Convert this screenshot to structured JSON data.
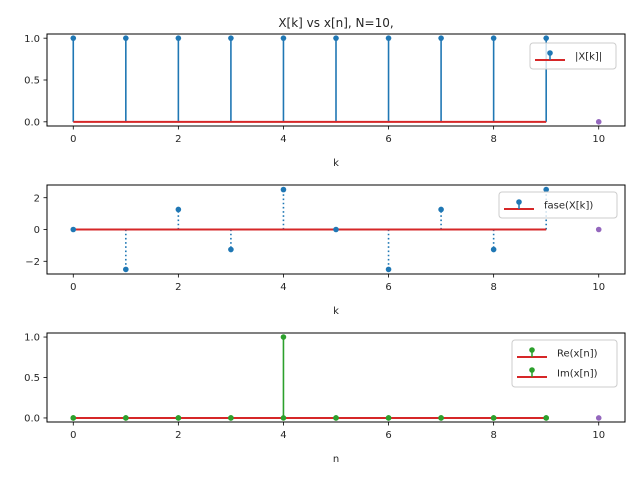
{
  "figure": {
    "title": "X[k] vs x[n], N=10,"
  },
  "colors": {
    "stem_blue": "#1f77b4",
    "stem_green": "#2ca02c",
    "baseline_red": "#d62728",
    "extra_point_purple": "#9467bd",
    "axis": "#000000",
    "text": "#262626"
  },
  "chart_data": [
    {
      "type": "stem",
      "title": "X[k] vs x[n], N=10,",
      "xlabel": "k",
      "ylabel": "",
      "legend": [
        "|X[k]|"
      ],
      "legend_position": "upper right",
      "xlim": [
        -0.5,
        10.5
      ],
      "ylim": [
        -0.05,
        1.05
      ],
      "xticks": [
        "0",
        "2",
        "4",
        "6",
        "8",
        "10"
      ],
      "yticks": [
        "0.0",
        "0.5",
        "1.0"
      ],
      "linestyle": "solid",
      "series": [
        {
          "name": "|X[k]|",
          "x": [
            0,
            1,
            2,
            3,
            4,
            5,
            6,
            7,
            8,
            9
          ],
          "values": [
            1,
            1,
            1,
            1,
            1,
            1,
            1,
            1,
            1,
            1
          ],
          "color": "#1f77b4"
        },
        {
          "name": "extra point",
          "x": [
            10
          ],
          "values": [
            0
          ],
          "color": "#9467bd"
        }
      ],
      "baseline": {
        "from": 0,
        "to": 9,
        "y": 0,
        "color": "#d62728"
      }
    },
    {
      "type": "stem",
      "title": "",
      "xlabel": "k",
      "ylabel": "",
      "legend": [
        "fase(X[k])"
      ],
      "legend_position": "upper right",
      "xlim": [
        -0.5,
        10.5
      ],
      "ylim": [
        -2.8,
        2.8
      ],
      "xticks": [
        "0",
        "2",
        "4",
        "6",
        "8",
        "10"
      ],
      "yticks": [
        "−2",
        "0",
        "2"
      ],
      "linestyle": "dotted",
      "series": [
        {
          "name": "fase(X[k])",
          "x": [
            0,
            1,
            2,
            3,
            4,
            5,
            6,
            7,
            8,
            9
          ],
          "values": [
            0,
            -2.51,
            1.26,
            -1.26,
            2.51,
            0,
            -2.51,
            1.26,
            -1.26,
            2.51
          ],
          "color": "#1f77b4"
        },
        {
          "name": "extra point",
          "x": [
            10
          ],
          "values": [
            0
          ],
          "color": "#9467bd"
        }
      ],
      "baseline": {
        "from": 0,
        "to": 9,
        "y": 0,
        "color": "#d62728"
      }
    },
    {
      "type": "stem",
      "title": "",
      "xlabel": "n",
      "ylabel": "",
      "legend": [
        "Re(x[n])",
        "Im(x[n])"
      ],
      "legend_position": "upper right",
      "xlim": [
        -0.5,
        10.5
      ],
      "ylim": [
        -0.05,
        1.05
      ],
      "xticks": [
        "0",
        "2",
        "4",
        "6",
        "8",
        "10"
      ],
      "yticks": [
        "0.0",
        "0.5",
        "1.0"
      ],
      "linestyle": "solid",
      "series": [
        {
          "name": "Re(x[n])",
          "x": [
            0,
            1,
            2,
            3,
            4,
            5,
            6,
            7,
            8,
            9
          ],
          "values": [
            0,
            0,
            0,
            0,
            1,
            0,
            0,
            0,
            0,
            0
          ],
          "color": "#2ca02c"
        },
        {
          "name": "Im(x[n])",
          "x": [
            0,
            1,
            2,
            3,
            4,
            5,
            6,
            7,
            8,
            9
          ],
          "values": [
            0,
            0,
            0,
            0,
            0,
            0,
            0,
            0,
            0,
            0
          ],
          "color": "#2ca02c"
        },
        {
          "name": "extra point",
          "x": [
            10
          ],
          "values": [
            0
          ],
          "color": "#9467bd"
        }
      ],
      "baseline": {
        "from": 0,
        "to": 9,
        "y": 0,
        "color": "#d62728"
      }
    }
  ]
}
